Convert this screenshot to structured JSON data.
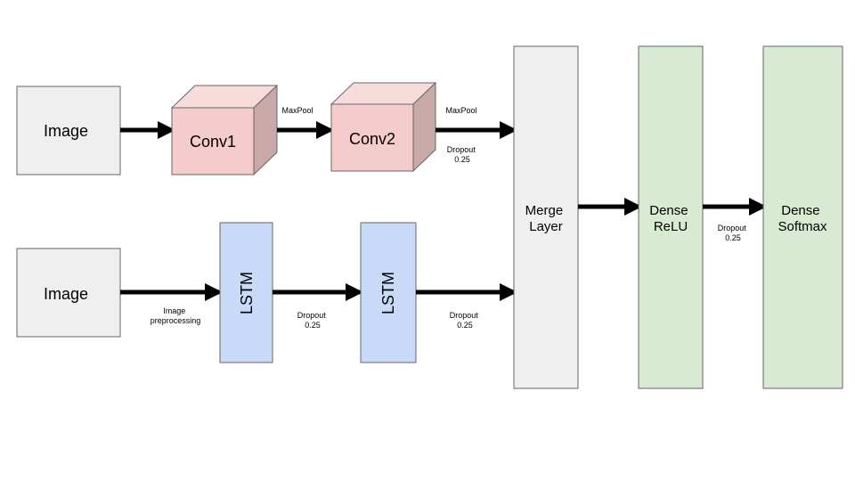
{
  "nodes": {
    "image_top": "Image",
    "image_bottom": "Image",
    "conv1": "Conv1",
    "conv2": "Conv2",
    "lstm1": "LSTM",
    "lstm2": "LSTM",
    "merge": [
      "Merge",
      "Layer"
    ],
    "dense_relu": [
      "Dense",
      "ReLU"
    ],
    "dense_softmax": [
      "Dense",
      "Softmax"
    ]
  },
  "edge_labels": {
    "maxpool_1": "MaxPool",
    "maxpool_2": "MaxPool",
    "dropout_conv": [
      "Dropout",
      "0.25"
    ],
    "image_preprocessing": [
      "Image",
      "preprocessing"
    ],
    "dropout_lstm1": [
      "Dropout",
      "0.25"
    ],
    "dropout_lstm2": [
      "Dropout",
      "0.25"
    ],
    "dropout_dense": [
      "Dropout",
      "0.25"
    ]
  },
  "colors": {
    "image_fill": "#efefef",
    "conv_front": "#f4cccc",
    "conv_top": "#f8dcdc",
    "conv_side": "#c9a8a8",
    "lstm_fill": "#c9daf8",
    "merge_fill": "#efefef",
    "dense_fill": "#d9ead3",
    "stroke": "#666666",
    "arrow": "#000000"
  }
}
